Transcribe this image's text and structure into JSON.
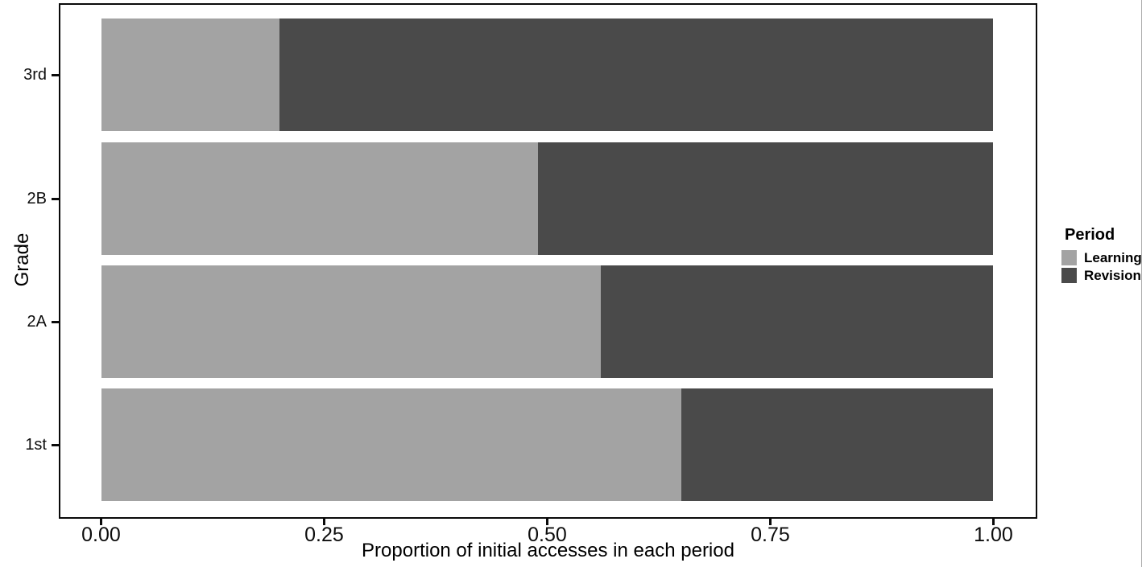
{
  "figure": {
    "background": "#ffffff",
    "panel_border_color": "#0a0a0a",
    "tick_color": "#0a0a0a",
    "text_color": "#000000"
  },
  "chart_data": {
    "type": "bar",
    "orientation": "horizontal",
    "stacked": true,
    "title": "",
    "xlabel": "Proportion of initial accesses in each period",
    "ylabel": "Grade",
    "categories": [
      "3rd",
      "2B",
      "2A",
      "1st"
    ],
    "series": [
      {
        "name": "Learning",
        "color": "#a3a3a3",
        "values": [
          0.2,
          0.49,
          0.56,
          0.65
        ]
      },
      {
        "name": "Revision",
        "color": "#4a4a4a",
        "values": [
          0.8,
          0.51,
          0.44,
          0.35
        ]
      }
    ],
    "xlim": [
      0,
      1
    ],
    "x_ticks": [
      {
        "value": 0.0,
        "label": "0.00"
      },
      {
        "value": 0.25,
        "label": "0.25"
      },
      {
        "value": 0.5,
        "label": "0.50"
      },
      {
        "value": 0.75,
        "label": "0.75"
      },
      {
        "value": 1.0,
        "label": "1.00"
      }
    ],
    "grid": false,
    "legend": {
      "title": "Period",
      "position": "right",
      "entries": [
        "Learning",
        "Revision"
      ]
    }
  }
}
